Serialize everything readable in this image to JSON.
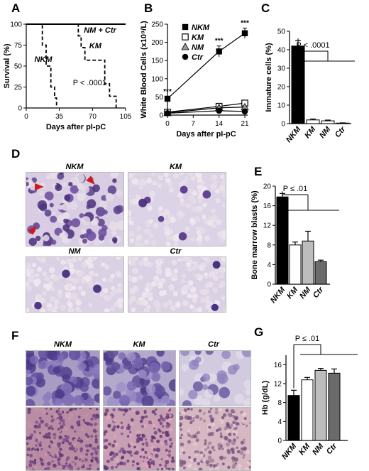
{
  "panels": {
    "A": "A",
    "B": "B",
    "C": "C",
    "D": "D",
    "E": "E",
    "F": "F",
    "G": "G"
  },
  "chart_data": [
    {
      "panel": "A",
      "type": "line",
      "xlabel": "Days after pI-pC",
      "ylabel": "Survival (%)",
      "xlim": [
        0,
        105
      ],
      "ylim": [
        0,
        100
      ],
      "xticks": [
        0,
        35,
        70,
        105
      ],
      "yticks": [
        0,
        25,
        50,
        75,
        100
      ],
      "annotation": "P < .0001",
      "series": [
        {
          "name": "NM + Ctr",
          "style": "solid",
          "x": [
            0,
            105
          ],
          "y": [
            100,
            100
          ]
        },
        {
          "name": "KM",
          "style": "dashed",
          "x": [
            0,
            55,
            55,
            58,
            58,
            62,
            62,
            83,
            83,
            88,
            88,
            95,
            95
          ],
          "y": [
            100,
            100,
            86,
            86,
            72,
            72,
            57,
            57,
            29,
            29,
            14,
            14,
            0
          ]
        },
        {
          "name": "NKM",
          "style": "dashed",
          "x": [
            0,
            17,
            17,
            21,
            21,
            26,
            26,
            30,
            30,
            32,
            32
          ],
          "y": [
            100,
            100,
            75,
            75,
            50,
            50,
            25,
            25,
            12,
            12,
            0
          ]
        }
      ]
    },
    {
      "panel": "B",
      "type": "line",
      "xlabel": "Days after pI-pC",
      "ylabel": "White Blood Cells (x10⁹/L)",
      "xlim": [
        0,
        21
      ],
      "ylim": [
        0,
        250
      ],
      "xticks": [
        0,
        7,
        14,
        21
      ],
      "yticks": [
        0,
        50,
        100,
        150,
        200,
        250
      ],
      "x": [
        0,
        14,
        21
      ],
      "significance": [
        "***",
        "***",
        "***"
      ],
      "series": [
        {
          "name": "NKM",
          "marker": "filled-square",
          "values": [
            45,
            175,
            225
          ],
          "err": [
            6,
            15,
            14
          ]
        },
        {
          "name": "KM",
          "marker": "open-square",
          "values": [
            8,
            24,
            33
          ],
          "err": [
            2,
            4,
            5
          ]
        },
        {
          "name": "NM",
          "marker": "triangle",
          "values": [
            6,
            20,
            22
          ],
          "err": [
            2,
            3,
            3
          ]
        },
        {
          "name": "Ctr",
          "marker": "filled-circle",
          "values": [
            5,
            12,
            10
          ],
          "err": [
            1,
            2,
            2
          ]
        }
      ]
    },
    {
      "panel": "C",
      "type": "bar",
      "ylabel": "Immature cells (%)",
      "ylim": [
        0,
        50
      ],
      "yticks": [
        0,
        10,
        20,
        30,
        40,
        50
      ],
      "annotation": "P < .0001",
      "categories": [
        "NKM",
        "KM",
        "NM",
        "Ctr"
      ],
      "values": [
        42,
        2,
        1.5,
        0.3
      ],
      "errors": [
        3,
        0.5,
        0.4,
        0.1
      ],
      "colors": [
        "#000000",
        "#ffffff",
        "#ffffff",
        "#ffffff"
      ]
    },
    {
      "panel": "E",
      "type": "bar",
      "ylabel": "Bone marrow blasts (%)",
      "ylim": [
        0,
        20
      ],
      "yticks": [
        0,
        4,
        8,
        12,
        16,
        20
      ],
      "annotation": "P ≤ .01",
      "categories": [
        "NKM",
        "KM",
        "NM",
        "Ctr"
      ],
      "values": [
        17.8,
        8,
        8.8,
        4.6
      ],
      "errors": [
        0.7,
        0.6,
        2,
        0.3
      ],
      "colors": [
        "#000000",
        "#ffffff",
        "#bdbdbd",
        "#6b6b6b"
      ]
    },
    {
      "panel": "G",
      "type": "bar",
      "ylabel": "Hb (g/dL)",
      "ylim": [
        0,
        18
      ],
      "yticks": [
        0,
        4,
        8,
        12,
        16
      ],
      "annotation": "P ≤ .01",
      "categories": [
        "NKM",
        "KM",
        "NM",
        "Ctr"
      ],
      "values": [
        9.5,
        12.8,
        14.8,
        14.2
      ],
      "errors": [
        1.1,
        0.5,
        0.4,
        0.9
      ],
      "colors": [
        "#000000",
        "#ffffff",
        "#bdbdbd",
        "#6b6b6b"
      ]
    }
  ],
  "micrographs": {
    "D": [
      "NKM",
      "KM",
      "NM",
      "Ctr"
    ],
    "F": [
      "NKM",
      "KM",
      "Ctr"
    ]
  }
}
